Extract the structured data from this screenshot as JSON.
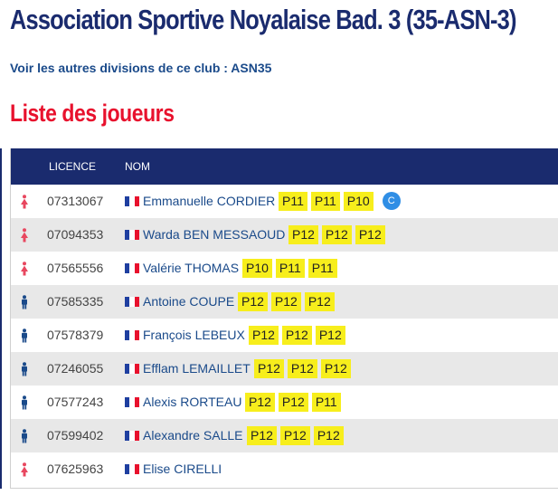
{
  "page": {
    "title": "Association Sportive Noyalaise Bad. 3 (35-ASN-3)",
    "club_link": "Voir les autres divisions de ce club : ASN35",
    "section_title": "Liste des joueurs"
  },
  "table": {
    "headers": {
      "licence": "LICENCE",
      "nom": "NOM"
    },
    "rows": [
      {
        "gender": "female",
        "licence": "07313067",
        "name": "Emmanuelle CORDIER",
        "rankings": [
          "P11",
          "P11",
          "P10"
        ],
        "captain": "C"
      },
      {
        "gender": "female",
        "licence": "07094353",
        "name": "Warda BEN MESSAOUD",
        "rankings": [
          "P12",
          "P12",
          "P12"
        ]
      },
      {
        "gender": "female",
        "licence": "07565556",
        "name": "Valérie THOMAS",
        "rankings": [
          "P10",
          "P11",
          "P11"
        ]
      },
      {
        "gender": "male",
        "licence": "07585335",
        "name": "Antoine COUPE",
        "rankings": [
          "P12",
          "P12",
          "P12"
        ]
      },
      {
        "gender": "male",
        "licence": "07578379",
        "name": "François LEBEUX",
        "rankings": [
          "P12",
          "P12",
          "P12"
        ]
      },
      {
        "gender": "male",
        "licence": "07246055",
        "name": "Efflam LEMAILLET",
        "rankings": [
          "P12",
          "P12",
          "P12"
        ]
      },
      {
        "gender": "male",
        "licence": "07577243",
        "name": "Alexis RORTEAU",
        "rankings": [
          "P12",
          "P12",
          "P11"
        ]
      },
      {
        "gender": "male",
        "licence": "07599402",
        "name": "Alexandre SALLE",
        "rankings": [
          "P12",
          "P12",
          "P12"
        ]
      },
      {
        "gender": "female",
        "licence": "07625963",
        "name": "Elise CIRELLI",
        "rankings": []
      }
    ]
  },
  "colors": {
    "header_bg": "#1a2b6e",
    "title": "#1a2b6e",
    "section_title": "#e8112d",
    "link": "#1a4a8a",
    "badge": "#f7ee1c",
    "captain": "#2f8ee5",
    "female_icon": "#e8475f",
    "male_icon": "#1a4a8a"
  },
  "icons": {
    "female": "female-icon",
    "male": "male-icon",
    "flag": "france-flag-icon"
  }
}
